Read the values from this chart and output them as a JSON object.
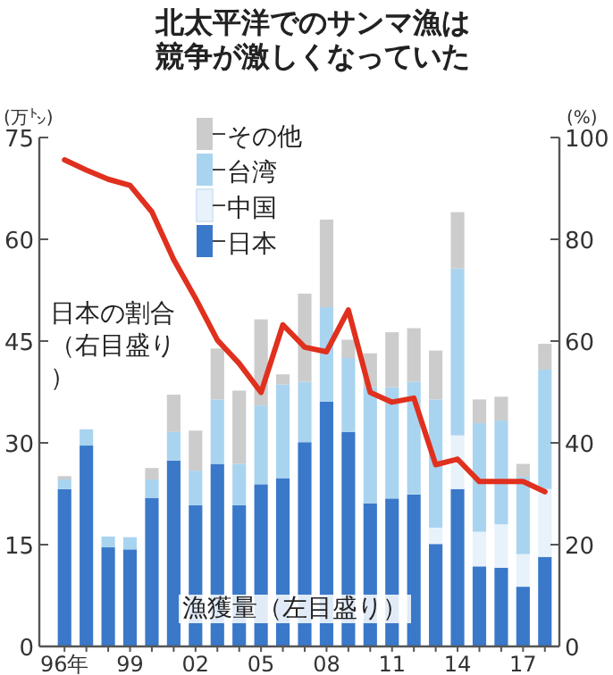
{
  "chart_data": {
    "type": "bar",
    "stacked": true,
    "title": "北太平洋でのサンマ漁は競争が激しくなっていた",
    "categories": [
      "96年",
      null,
      null,
      "99",
      null,
      null,
      "02",
      null,
      null,
      "05",
      null,
      null,
      "08",
      null,
      null,
      "11",
      null,
      null,
      "14",
      null,
      null,
      "17",
      null
    ],
    "series": [
      {
        "name": "日本",
        "color": "#3a78c9",
        "values": [
          23.2,
          29.6,
          14.6,
          14.3,
          21.9,
          27.4,
          20.8,
          26.9,
          20.8,
          23.9,
          24.8,
          30.1,
          36.1,
          31.6,
          21.1,
          21.8,
          22.4,
          15.1,
          23.2,
          11.8,
          11.6,
          8.8,
          13.2
        ]
      },
      {
        "name": "中国",
        "color": "#e8f2fb",
        "values": [
          0,
          0,
          0,
          0,
          0,
          0,
          0,
          0,
          0,
          0,
          0,
          0,
          0,
          0,
          0,
          0,
          0,
          2.4,
          7.9,
          5.1,
          6.4,
          4.8,
          10.0
        ]
      },
      {
        "name": "台湾",
        "color": "#a9d4f0",
        "values": [
          1.4,
          2.4,
          1.6,
          1.8,
          2.7,
          4.2,
          5.1,
          9.5,
          6.1,
          11.6,
          13.8,
          8.9,
          13.9,
          10.9,
          17.1,
          16.4,
          16.6,
          18.9,
          24.6,
          16.0,
          15.3,
          11.4,
          17.6
        ]
      },
      {
        "name": "その他",
        "color": "#cccccc",
        "values": [
          0.5,
          0,
          0,
          0,
          1.7,
          5.5,
          5.9,
          7.5,
          10.8,
          12.7,
          1.5,
          13.0,
          12.9,
          2.7,
          5.0,
          8.1,
          7.9,
          7.2,
          8.3,
          3.5,
          3.5,
          1.9,
          3.8
        ]
      },
      {
        "type": "line",
        "axis": "y2",
        "color": "#e0301e",
        "values": [
          95.6,
          93.6,
          91.8,
          90.6,
          85.4,
          76.0,
          68.4,
          60.2,
          55.6,
          49.9,
          63.2,
          58.8,
          57.9,
          66.1,
          49.9,
          48.0,
          48.8,
          35.7,
          36.8,
          32.4,
          32.4,
          32.4,
          30.4
        ]
      }
    ],
    "ylabel": "(万㌧)",
    "y2label": "(%)",
    "ylim": [
      0,
      75
    ],
    "yticks": [
      0,
      15,
      30,
      45,
      60,
      75
    ],
    "y2lim": [
      0,
      100
    ],
    "y2ticks": [
      0,
      20,
      40,
      60,
      80,
      100
    ],
    "legend": "top",
    "annotations": [
      "日本の割合（右目盛り）",
      "漁獲量（左目盛り）"
    ]
  }
}
